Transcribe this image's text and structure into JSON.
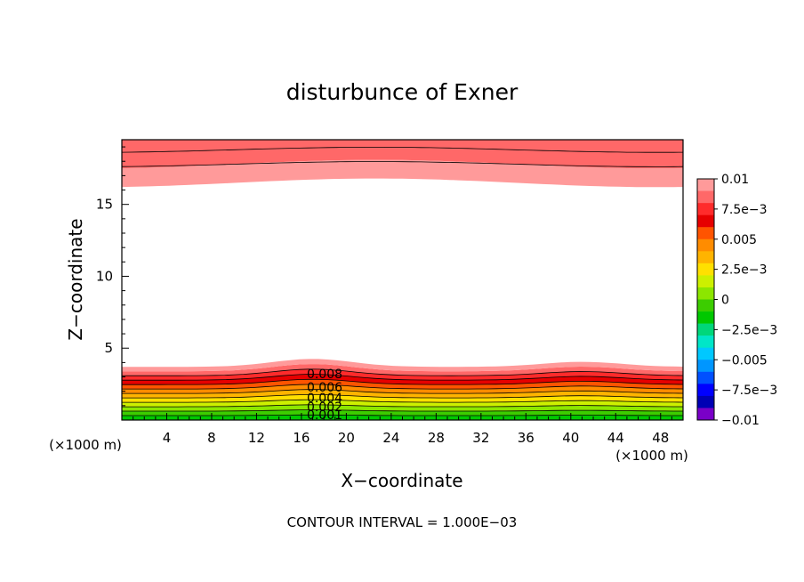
{
  "chart_data": {
    "type": "heatmap",
    "title": "disturbunce of Exner",
    "xlabel": "X−coordinate",
    "ylabel": "Z−coordinate",
    "x_unit_left": "(×1000 m)",
    "x_unit_right": "(×1000 m)",
    "footer": "CONTOUR INTERVAL = 1.000E−03",
    "xlim": [
      0,
      50
    ],
    "ylim": [
      0,
      19.5
    ],
    "xticks": [
      "4",
      "8",
      "12",
      "16",
      "20",
      "24",
      "28",
      "32",
      "36",
      "40",
      "44",
      "48"
    ],
    "yticks": [
      "5",
      "10",
      "15"
    ],
    "contour_labels": [
      "0.008",
      "0.006",
      "0.004",
      "0.002",
      "0.001"
    ],
    "colorbar": {
      "labels": [
        "0.01",
        "7.5e−3",
        "0.005",
        "2.5e−3",
        "0",
        "−2.5e−3",
        "−0.005",
        "−7.5e−3",
        "−0.01"
      ],
      "colors": [
        "#ff9a9a",
        "#ff6868",
        "#ff2b2b",
        "#e60000",
        "#ff5400",
        "#ff8c00",
        "#ffb400",
        "#ffe000",
        "#cdf000",
        "#8ce600",
        "#3ccd00",
        "#00c800",
        "#00d77a",
        "#00e6c8",
        "#00c8ff",
        "#0096ff",
        "#0050ff",
        "#0000ff",
        "#0000b4",
        "#7a00c8"
      ]
    },
    "bottom_layer": {
      "z_top": 3.7,
      "levels": [
        0.001,
        0.002,
        0.003,
        0.004,
        0.005,
        0.006,
        0.007,
        0.008,
        0.009
      ],
      "colors": [
        "#00c800",
        "#3ccd00",
        "#8ce600",
        "#cdf000",
        "#ffe000",
        "#ffb400",
        "#ff8c00",
        "#ff5400",
        "#e60000",
        "#ff2b2b",
        "#ff6868",
        "#ff9a9a"
      ]
    },
    "top_layer": {
      "z_bottom": 16.5,
      "colors": [
        "#ff9a9a",
        "#ff6868"
      ]
    }
  }
}
